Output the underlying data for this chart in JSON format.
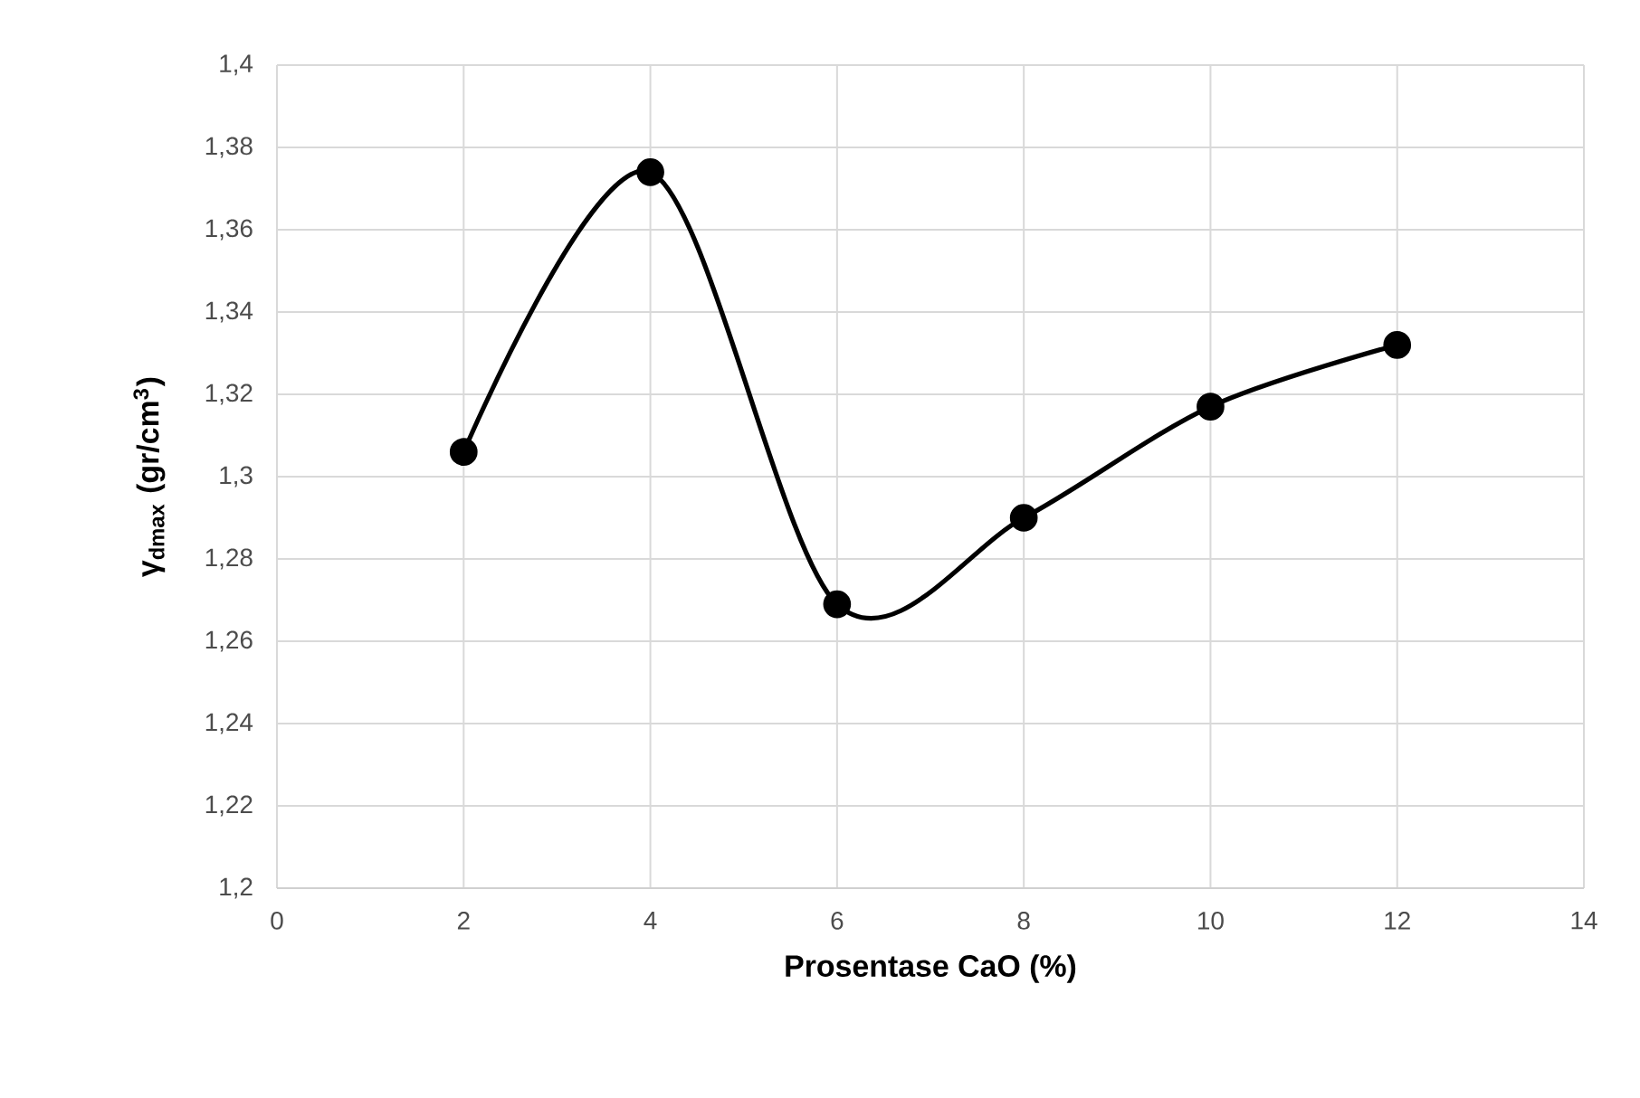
{
  "chart_data": {
    "type": "line",
    "xlabel": "Prosentase CaO (%)",
    "ylabel": "γ$_{dmax}$  (gr/cm$^{3}$)",
    "x": [
      2,
      4,
      6,
      8,
      10,
      12
    ],
    "series": [
      {
        "color": "#000000",
        "values": [
          1.306,
          1.374,
          1.269,
          1.29,
          1.317,
          1.332
        ]
      }
    ],
    "xlim": [
      0,
      14
    ],
    "xticks": [
      0,
      2,
      4,
      6,
      8,
      10,
      12,
      14
    ],
    "ylim": [
      1.2,
      1.4
    ],
    "yticks": [
      {
        "value": 1.2,
        "label": "1,2"
      },
      {
        "value": 1.22,
        "label": "1,22"
      },
      {
        "value": 1.24,
        "label": "1,24"
      },
      {
        "value": 1.26,
        "label": "1,26"
      },
      {
        "value": 1.28,
        "label": "1,28"
      },
      {
        "value": 1.3,
        "label": "1,3"
      },
      {
        "value": 1.32,
        "label": "1,32"
      },
      {
        "value": 1.34,
        "label": "1,34"
      },
      {
        "value": 1.36,
        "label": "1,36"
      },
      {
        "value": 1.38,
        "label": "1,38"
      },
      {
        "value": 1.4,
        "label": "1,4"
      }
    ],
    "grid": true,
    "marker": "circle",
    "line_style": "solid"
  }
}
